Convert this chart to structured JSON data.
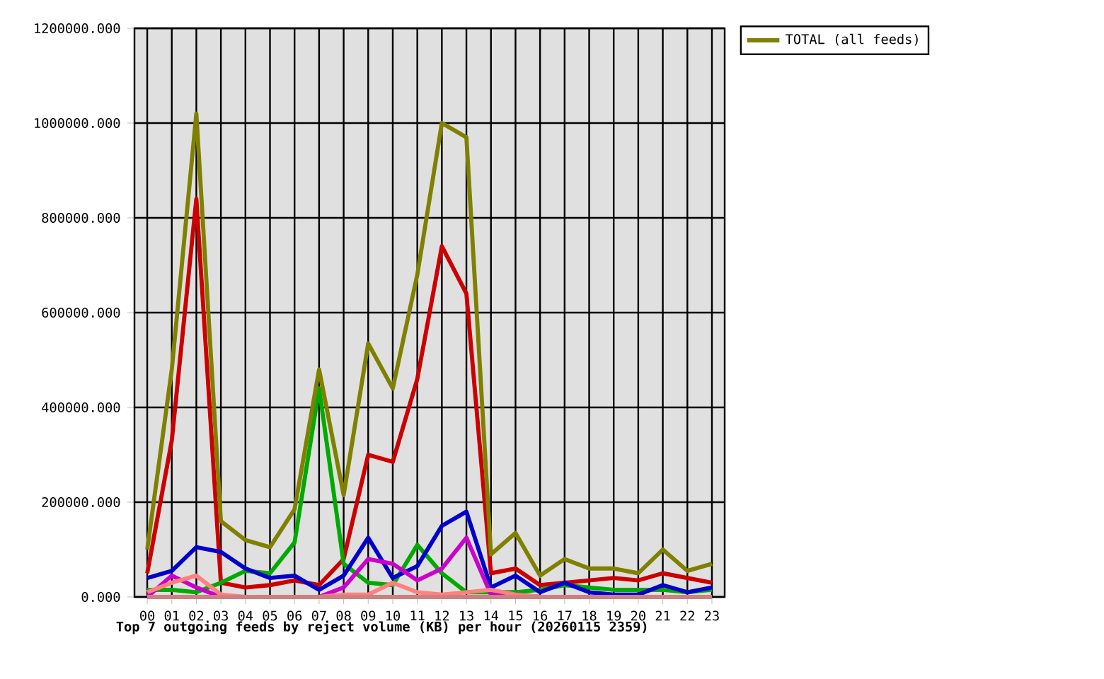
{
  "chart_data": {
    "type": "line",
    "title": "Top 7 outgoing feeds by reject volume (KB) per hour (20260115 2359)",
    "categories": [
      "00",
      "01",
      "02",
      "03",
      "04",
      "05",
      "06",
      "07",
      "08",
      "09",
      "10",
      "11",
      "12",
      "13",
      "14",
      "15",
      "16",
      "17",
      "18",
      "19",
      "20",
      "21",
      "22",
      "23"
    ],
    "ylim": [
      0,
      1200000
    ],
    "yticks": [
      {
        "value": 0,
        "label": "0.000"
      },
      {
        "value": 200000,
        "label": "200000.000"
      },
      {
        "value": 400000,
        "label": "400000.000"
      },
      {
        "value": 600000,
        "label": "600000.000"
      },
      {
        "value": 800000,
        "label": "800000.000"
      },
      {
        "value": 1000000,
        "label": "1000000.000"
      },
      {
        "value": 1200000,
        "label": "1200000.000"
      }
    ],
    "grid": true,
    "legend": "right",
    "series": [
      {
        "color": "#cc0000",
        "values": [
          50000,
          330000,
          840000,
          30000,
          20000,
          25000,
          35000,
          25000,
          80000,
          300000,
          285000,
          460000,
          740000,
          640000,
          50000,
          60000,
          25000,
          30000,
          35000,
          40000,
          35000,
          50000,
          40000,
          30000
        ]
      },
      {
        "color": "#00aa00",
        "values": [
          15000,
          15000,
          10000,
          30000,
          55000,
          50000,
          115000,
          440000,
          70000,
          30000,
          25000,
          110000,
          50000,
          10000,
          10000,
          10000,
          15000,
          25000,
          20000,
          15000,
          15000,
          15000,
          10000,
          15000
        ]
      },
      {
        "color": "#0000cc",
        "values": [
          40000,
          55000,
          105000,
          95000,
          60000,
          40000,
          45000,
          15000,
          45000,
          125000,
          40000,
          65000,
          150000,
          180000,
          20000,
          45000,
          10000,
          30000,
          10000,
          5000,
          5000,
          25000,
          10000,
          20000
        ]
      },
      {
        "color": "#cc00cc",
        "values": [
          0,
          45000,
          20000,
          0,
          0,
          0,
          0,
          0,
          20000,
          80000,
          70000,
          35000,
          60000,
          125000,
          5000,
          5000,
          0,
          null,
          null,
          null,
          null,
          null,
          null,
          null
        ]
      },
      {
        "color": "#ff8080",
        "values": [
          10000,
          30000,
          45000,
          5000,
          0,
          0,
          0,
          0,
          5000,
          5000,
          30000,
          10000,
          5000,
          10000,
          15000,
          5000,
          0,
          0,
          null,
          null,
          null,
          null,
          null,
          null
        ]
      },
      {
        "color": "#cc8080",
        "values": [
          0,
          0,
          0,
          0,
          0,
          0,
          0,
          0,
          0,
          0,
          0,
          0,
          0,
          0,
          0,
          0,
          0,
          0,
          0,
          0,
          0,
          0,
          0,
          0
        ]
      },
      {
        "name": "TOTAL (all feeds)",
        "color": "#808000",
        "values": [
          100000,
          480000,
          1020000,
          160000,
          120000,
          105000,
          185000,
          480000,
          215000,
          535000,
          440000,
          680000,
          1000000,
          970000,
          90000,
          135000,
          45000,
          80000,
          60000,
          60000,
          50000,
          100000,
          55000,
          70000
        ]
      }
    ]
  }
}
